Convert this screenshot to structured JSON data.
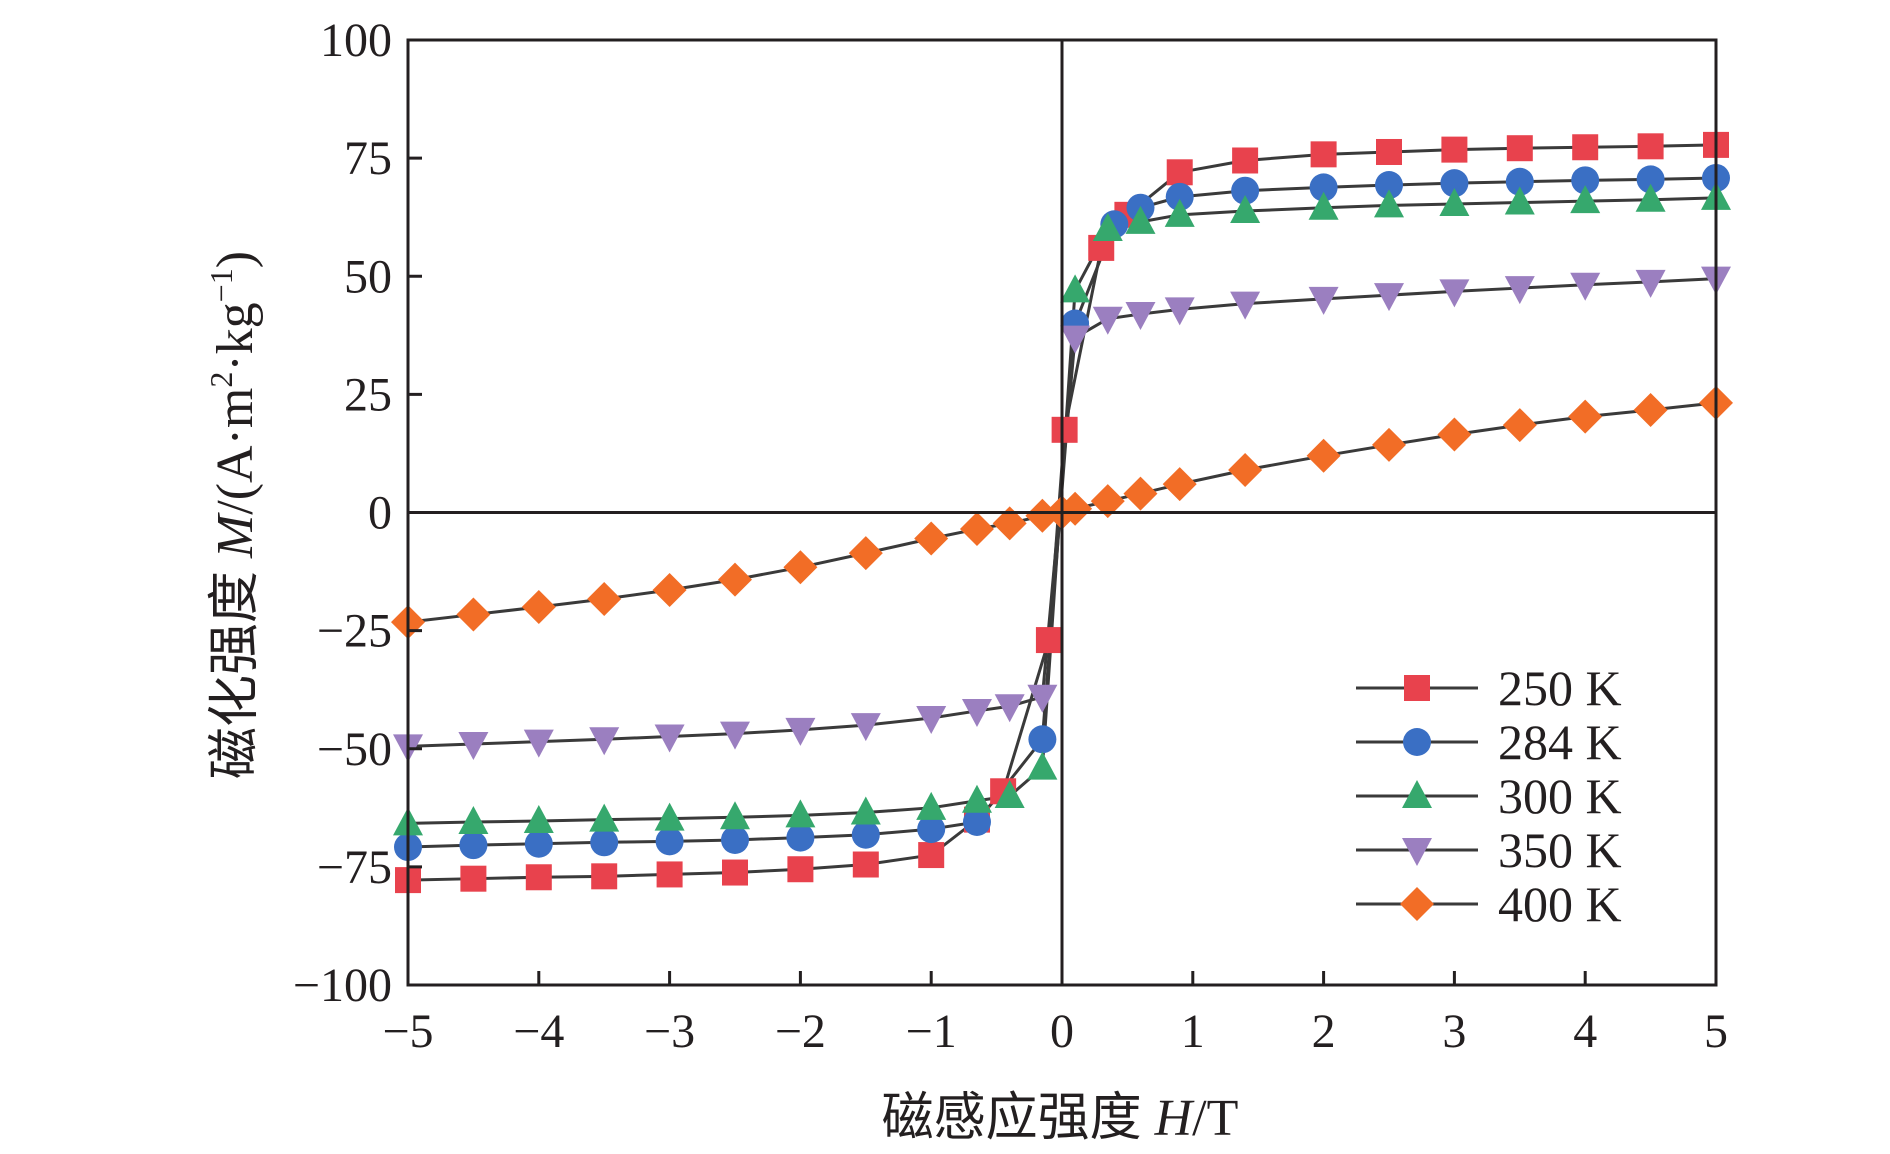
{
  "chart_data": {
    "type": "line",
    "title": "",
    "xlabel": {
      "prefix": "磁感应强度 ",
      "symbol": "H",
      "suffix": "/T"
    },
    "ylabel": {
      "prefix": "磁化强度 ",
      "symbol": "M",
      "unit_open": "/(A·m",
      "sup1": "2",
      "unit_mid": "·kg",
      "sup2": "−1",
      "unit_close": ")"
    },
    "xlim": [
      -5,
      5
    ],
    "ylim": [
      -100,
      100
    ],
    "xticks": [
      -5,
      -4,
      -3,
      -2,
      -1,
      0,
      1,
      2,
      3,
      4,
      5
    ],
    "xtick_labels": [
      "−5",
      "−4",
      "−3",
      "−2",
      "−1",
      "0",
      "1",
      "2",
      "3",
      "4",
      "5"
    ],
    "yticks": [
      -100,
      -75,
      -50,
      -25,
      0,
      25,
      50,
      75,
      100
    ],
    "ytick_labels": [
      "−100",
      "−75",
      "−50",
      "−25",
      "0",
      "25",
      "50",
      "75",
      "100"
    ],
    "legend_position": "bottom-right",
    "series": [
      {
        "name": "250 K",
        "marker": "square",
        "color": "#e8424d",
        "x": [
          -5,
          -4.5,
          -4,
          -3.5,
          -3,
          -2.5,
          -2,
          -1.5,
          -1,
          -0.65,
          -0.45,
          -0.1,
          0.02,
          0.3,
          0.5,
          0.9,
          1.4,
          2,
          2.5,
          3,
          3.5,
          4,
          4.5,
          5
        ],
        "y": [
          -77.8,
          -77.5,
          -77.2,
          -77,
          -76.6,
          -76.2,
          -75.5,
          -74.5,
          -72.5,
          -65,
          -59,
          -27,
          17.5,
          56,
          63,
          72,
          74.5,
          75.8,
          76.3,
          76.8,
          77.1,
          77.3,
          77.5,
          77.8
        ]
      },
      {
        "name": "284 K",
        "marker": "circle",
        "color": "#3a6fc4",
        "x": [
          -5,
          -4.5,
          -4,
          -3.5,
          -3,
          -2.5,
          -2,
          -1.5,
          -1,
          -0.65,
          -0.15,
          0.1,
          0.4,
          0.6,
          0.9,
          1.4,
          2,
          2.5,
          3,
          3.5,
          4,
          4.5,
          5
        ],
        "y": [
          -70.8,
          -70.4,
          -70.1,
          -69.8,
          -69.6,
          -69.3,
          -68.8,
          -68.2,
          -67,
          -65.5,
          -48,
          40,
          61,
          64.5,
          66.8,
          68.1,
          68.8,
          69.3,
          69.7,
          70,
          70.3,
          70.5,
          70.8
        ]
      },
      {
        "name": "300 K",
        "marker": "triangle-up",
        "color": "#36a86d",
        "x": [
          -5,
          -4.5,
          -4,
          -3.5,
          -3,
          -2.5,
          -2,
          -1.5,
          -1,
          -0.65,
          -0.4,
          -0.15,
          0.1,
          0.35,
          0.6,
          0.9,
          1.4,
          2,
          2.5,
          3,
          3.5,
          4,
          4.5,
          5
        ],
        "y": [
          -65.8,
          -65.5,
          -65.3,
          -65,
          -64.8,
          -64.5,
          -64.1,
          -63.5,
          -62.5,
          -61,
          -60,
          -54,
          47,
          60,
          61.5,
          63,
          63.8,
          64.5,
          65,
          65.3,
          65.6,
          65.9,
          66.2,
          66.6
        ]
      },
      {
        "name": "350 K",
        "marker": "triangle-down",
        "color": "#9b7fc0",
        "x": [
          -5,
          -4.5,
          -4,
          -3.5,
          -3,
          -2.5,
          -2,
          -1.5,
          -1,
          -0.65,
          -0.4,
          -0.15,
          0.1,
          0.35,
          0.6,
          0.9,
          1.4,
          2,
          2.5,
          3,
          3.5,
          4,
          4.5,
          5
        ],
        "y": [
          -49.5,
          -49,
          -48.5,
          -48,
          -47.4,
          -46.8,
          -46,
          -45,
          -43.5,
          -42,
          -41,
          -39,
          37,
          41,
          42,
          43,
          44.2,
          45.2,
          46,
          46.8,
          47.5,
          48.2,
          48.8,
          49.5
        ]
      },
      {
        "name": "400 K",
        "marker": "diamond",
        "color": "#f26d26",
        "x": [
          -5,
          -4.5,
          -4,
          -3.5,
          -3,
          -2.5,
          -2,
          -1.5,
          -1,
          -0.65,
          -0.4,
          -0.15,
          0,
          0.1,
          0.35,
          0.6,
          0.9,
          1.4,
          2,
          2.5,
          3,
          3.5,
          4,
          4.5,
          5
        ],
        "y": [
          -23.2,
          -21.6,
          -20,
          -18.3,
          -16.4,
          -14.2,
          -11.6,
          -8.6,
          -5.5,
          -3.5,
          -2.3,
          -0.7,
          0,
          0.8,
          2.4,
          4,
          6,
          9,
          12,
          14.3,
          16.5,
          18.5,
          20.3,
          21.7,
          23.2
        ]
      }
    ]
  }
}
